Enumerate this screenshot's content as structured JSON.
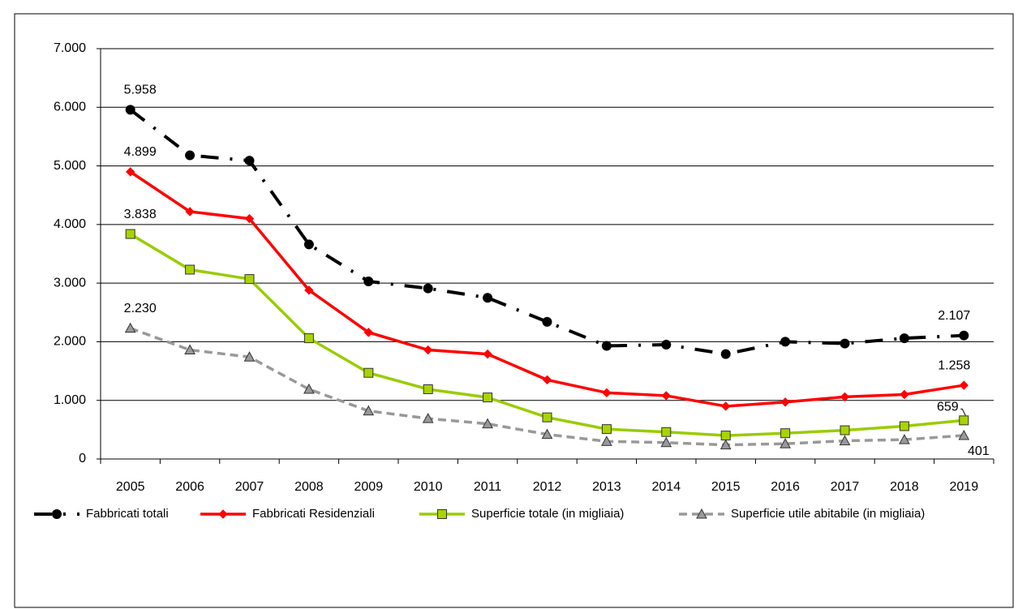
{
  "chart_data": {
    "type": "line",
    "categories": [
      "2005",
      "2006",
      "2007",
      "2008",
      "2009",
      "2010",
      "2011",
      "2012",
      "2013",
      "2014",
      "2015",
      "2016",
      "2017",
      "2018",
      "2019"
    ],
    "ylim": [
      0,
      7000
    ],
    "yticks": [
      0,
      {
        "value": 1000,
        "label": "1.000"
      },
      {
        "value": 2000,
        "label": "2.000"
      },
      {
        "value": 3000,
        "label": "3.000"
      },
      {
        "value": 4000,
        "label": "4.000"
      },
      {
        "value": 5000,
        "label": "5.000"
      },
      {
        "value": 6000,
        "label": "6.000"
      },
      {
        "value": 7000,
        "label": "7.000"
      }
    ],
    "grid": true,
    "legend": "bottom",
    "series": [
      {
        "name": "Fabbricati totali",
        "color": "#000000",
        "marker": "circle",
        "dash": "dashdot",
        "values": [
          5958,
          5180,
          5090,
          3660,
          3030,
          2910,
          2750,
          2340,
          1930,
          1950,
          1790,
          2000,
          1970,
          2060,
          2107
        ],
        "value_labels": [
          "5.958",
          null,
          null,
          null,
          null,
          null,
          null,
          null,
          null,
          null,
          null,
          null,
          null,
          null,
          "2.107"
        ]
      },
      {
        "name": "Fabbricati Residenziali",
        "color": "#ff0000",
        "marker": "diamond",
        "dash": "solid",
        "values": [
          4899,
          4220,
          4100,
          2880,
          2160,
          1860,
          1790,
          1350,
          1130,
          1080,
          900,
          970,
          1060,
          1100,
          1258
        ],
        "value_labels": [
          "4.899",
          null,
          null,
          null,
          null,
          null,
          null,
          null,
          null,
          null,
          null,
          null,
          null,
          null,
          "1.258"
        ]
      },
      {
        "name": "Superficie totale (in migliaia)",
        "color": "#99cc00",
        "marker": "square",
        "dash": "solid",
        "values": [
          3838,
          3230,
          3070,
          2060,
          1470,
          1190,
          1050,
          710,
          510,
          460,
          400,
          440,
          490,
          560,
          659
        ],
        "value_labels": [
          "3.838",
          null,
          null,
          null,
          null,
          null,
          null,
          null,
          null,
          null,
          null,
          null,
          null,
          null,
          "659"
        ]
      },
      {
        "name": "Superficie utile abitabile (in migliaia)",
        "color": "#999999",
        "marker": "triangle",
        "dash": "dashed",
        "values": [
          2230,
          1860,
          1740,
          1190,
          820,
          690,
          600,
          420,
          300,
          280,
          240,
          260,
          310,
          330,
          401
        ],
        "value_labels": [
          "2.230",
          null,
          null,
          null,
          null,
          null,
          null,
          null,
          null,
          null,
          null,
          null,
          null,
          null,
          "401"
        ]
      }
    ]
  }
}
